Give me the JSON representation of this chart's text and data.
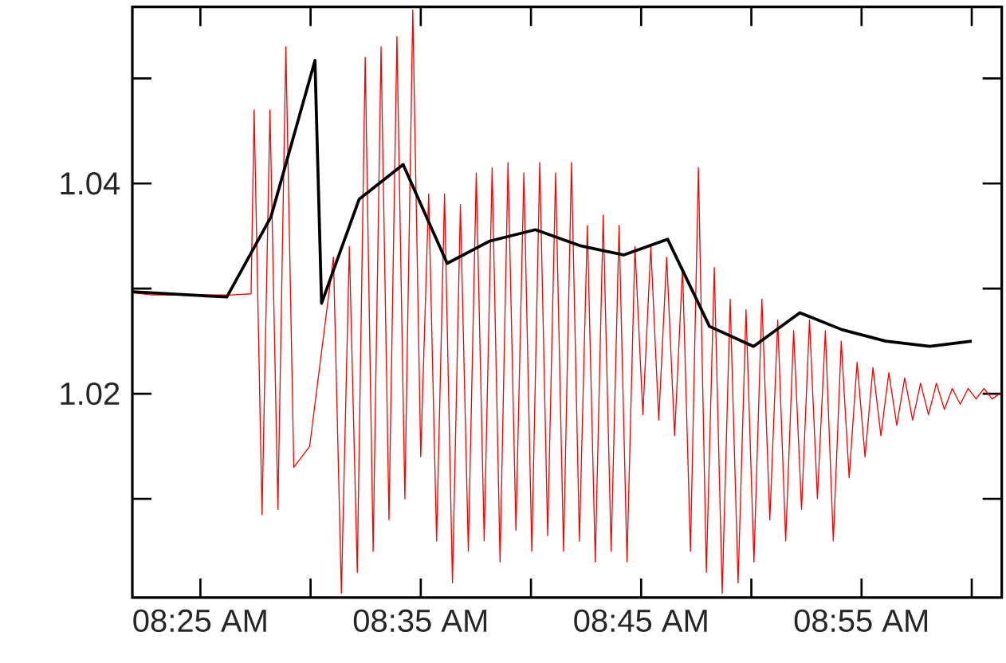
{
  "chart_data": {
    "type": "line",
    "xlim": [
      8.3652,
      9.0227
    ],
    "ylim": [
      1.0006,
      1.0568
    ],
    "xticks": [
      {
        "value": 8.41667,
        "label": "08:25 AM"
      },
      {
        "value": 8.5,
        "label": null
      },
      {
        "value": 8.58333,
        "label": "08:35 AM"
      },
      {
        "value": 8.66667,
        "label": null
      },
      {
        "value": 8.75,
        "label": "08:45 AM"
      },
      {
        "value": 8.83333,
        "label": null
      },
      {
        "value": 8.91667,
        "label": "08:55 AM"
      },
      {
        "value": 9.0,
        "label": null
      }
    ],
    "yticks": [
      {
        "value": 1.01,
        "label": null
      },
      {
        "value": 1.02,
        "label": "1.02"
      },
      {
        "value": 1.03,
        "label": null
      },
      {
        "value": 1.04,
        "label": "1.04"
      },
      {
        "value": 1.05,
        "label": null
      }
    ],
    "grid": false,
    "series": [
      {
        "color": "#ff0000",
        "x": [
          8.3652,
          8.38,
          8.4,
          8.42,
          8.44,
          8.455,
          8.4573,
          8.4633,
          8.4693,
          8.4753,
          8.4813,
          8.4873,
          8.4933,
          8.4993,
          8.5053,
          8.5113,
          8.5173,
          8.5233,
          8.5293,
          8.5353,
          8.5413,
          8.5473,
          8.5533,
          8.5593,
          8.5653,
          8.5713,
          8.5773,
          8.5833,
          8.5893,
          8.5953,
          8.6013,
          8.6073,
          8.6133,
          8.6193,
          8.6253,
          8.6313,
          8.6373,
          8.6433,
          8.6493,
          8.6553,
          8.6613,
          8.6673,
          8.6733,
          8.6793,
          8.6853,
          8.6913,
          8.6973,
          8.7033,
          8.7093,
          8.7153,
          8.7213,
          8.7273,
          8.7333,
          8.7393,
          8.7453,
          8.7513,
          8.7573,
          8.7633,
          8.7693,
          8.7753,
          8.7813,
          8.7873,
          8.7933,
          8.7993,
          8.8053,
          8.8113,
          8.8173,
          8.8233,
          8.8293,
          8.8353,
          8.8413,
          8.8473,
          8.8533,
          8.8593,
          8.8653,
          8.8713,
          8.8773,
          8.8833,
          8.8893,
          8.8953,
          8.9013,
          8.9073,
          8.9133,
          8.9193,
          8.9253,
          8.9313,
          8.9373,
          8.9433,
          8.9493,
          8.9553,
          8.9613,
          8.9673,
          8.9733,
          8.9793,
          8.9853,
          8.9913,
          8.9973,
          9.0033,
          9.0093,
          9.0153,
          9.0213
        ],
        "values": [
          1.0296,
          1.0294,
          null,
          null,
          1.0294,
          1.0295,
          1.047,
          1.0085,
          1.047,
          1.009,
          1.053,
          1.013,
          null,
          1.015,
          null,
          null,
          1.033,
          1.001,
          1.034,
          1.003,
          1.052,
          1.005,
          1.053,
          1.008,
          1.054,
          1.01,
          1.0565,
          1.014,
          1.039,
          1.006,
          1.039,
          1.002,
          1.038,
          1.005,
          1.041,
          1.006,
          1.0415,
          1.004,
          1.042,
          1.007,
          1.041,
          1.005,
          1.042,
          1.0065,
          1.041,
          1.005,
          1.042,
          1.006,
          1.036,
          1.004,
          1.037,
          1.005,
          1.036,
          1.004,
          1.034,
          1.018,
          1.034,
          1.0175,
          1.033,
          1.016,
          1.032,
          1.005,
          1.0415,
          1.003,
          1.032,
          1.001,
          1.029,
          1.002,
          1.028,
          1.004,
          1.029,
          1.008,
          1.027,
          1.006,
          1.026,
          1.009,
          1.027,
          1.01,
          1.026,
          1.006,
          1.025,
          1.012,
          1.023,
          1.014,
          1.0225,
          1.016,
          1.022,
          1.017,
          1.0215,
          1.0175,
          1.021,
          1.018,
          1.021,
          1.0185,
          1.0205,
          1.019,
          1.0205,
          1.0195,
          1.0205,
          1.0195,
          1.02
        ]
      },
      {
        "color": "#000000",
        "x": [
          8.3652,
          8.4367,
          8.47,
          8.5033,
          8.5083,
          8.5367,
          8.57,
          8.6033,
          8.635,
          8.67,
          8.7033,
          8.7367,
          8.77,
          8.8017,
          8.835,
          8.87,
          8.9017,
          8.935,
          8.9683,
          9.0
        ],
        "values": [
          1.0297,
          1.0292,
          1.0368,
          1.0517,
          1.0286,
          1.0385,
          1.0418,
          1.0324,
          1.0345,
          1.0356,
          1.0341,
          1.0332,
          1.0347,
          1.0264,
          1.0245,
          1.0277,
          1.0261,
          1.025,
          1.0245,
          1.025
        ]
      }
    ]
  }
}
